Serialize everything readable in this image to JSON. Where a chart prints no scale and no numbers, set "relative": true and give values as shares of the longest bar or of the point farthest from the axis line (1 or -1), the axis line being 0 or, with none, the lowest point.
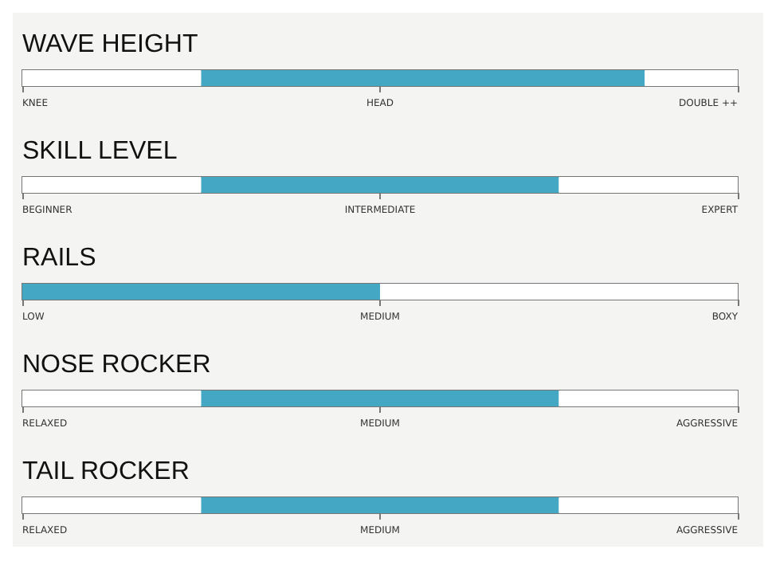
{
  "chart_data": [
    {
      "type": "bar",
      "title": "WAVE HEIGHT",
      "orientation": "horizontal",
      "relative": true,
      "stacked": true,
      "categories": [
        null
      ],
      "series": [
        {
          "color": "#ffffff",
          "values": [
            0.25
          ]
        },
        {
          "color": "#44a8c5",
          "values": [
            0.62
          ]
        },
        {
          "color": "#ffffff",
          "values": [
            0.13
          ]
        }
      ],
      "annotations": [
        "KNEE",
        "HEAD",
        "DOUBLE ++"
      ],
      "tick_labels": false
    },
    {
      "type": "bar",
      "title": "SKILL LEVEL",
      "orientation": "horizontal",
      "relative": true,
      "stacked": true,
      "categories": [
        null
      ],
      "series": [
        {
          "color": "#ffffff",
          "values": [
            0.25
          ]
        },
        {
          "color": "#44a8c5",
          "values": [
            0.5
          ]
        },
        {
          "color": "#ffffff",
          "values": [
            0.25
          ]
        }
      ],
      "annotations": [
        "BEGINNER",
        "INTERMEDIATE",
        "EXPERT"
      ],
      "tick_labels": false
    },
    {
      "type": "bar",
      "title": "RAILS",
      "orientation": "horizontal",
      "relative": true,
      "stacked": true,
      "categories": [
        null
      ],
      "series": [
        {
          "color": "#44a8c5",
          "values": [
            0.5
          ]
        },
        {
          "color": "#ffffff",
          "values": [
            0.5
          ]
        }
      ],
      "annotations": [
        "LOW",
        "MEDIUM",
        "BOXY"
      ],
      "tick_labels": false
    },
    {
      "type": "bar",
      "title": "NOSE ROCKER",
      "orientation": "horizontal",
      "relative": true,
      "stacked": true,
      "categories": [
        null
      ],
      "series": [
        {
          "color": "#ffffff",
          "values": [
            0.25
          ]
        },
        {
          "color": "#44a8c5",
          "values": [
            0.5
          ]
        },
        {
          "color": "#ffffff",
          "values": [
            0.25
          ]
        }
      ],
      "annotations": [
        "RELAXED",
        "MEDIUM",
        "AGGRESSIVE"
      ],
      "tick_labels": false
    },
    {
      "type": "bar",
      "title": "TAIL ROCKER",
      "orientation": "horizontal",
      "relative": true,
      "stacked": true,
      "categories": [
        null
      ],
      "series": [
        {
          "color": "#ffffff",
          "values": [
            0.25
          ]
        },
        {
          "color": "#44a8c5",
          "values": [
            0.5
          ]
        },
        {
          "color": "#ffffff",
          "values": [
            0.25
          ]
        }
      ],
      "annotations": [
        "RELAXED",
        "MEDIUM",
        "AGGRESSIVE"
      ],
      "tick_labels": false
    }
  ]
}
